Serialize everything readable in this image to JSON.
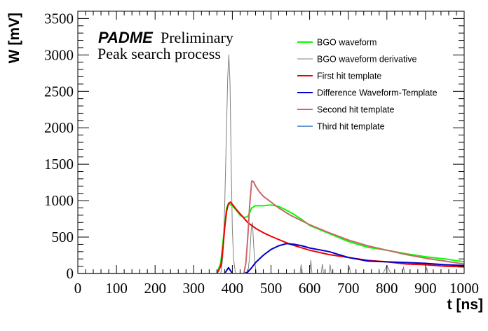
{
  "chart_data": {
    "type": "line",
    "xlabel": "t [ns]",
    "ylabel": "W [mV]",
    "xlim": [
      0,
      1000
    ],
    "ylim": [
      0,
      3600
    ],
    "x_ticks": [
      0,
      100,
      200,
      300,
      400,
      500,
      600,
      700,
      800,
      900,
      1000
    ],
    "y_ticks": [
      0,
      500,
      1000,
      1500,
      2000,
      2500,
      3000,
      3500
    ],
    "grid": false,
    "legend_position": "top-right",
    "annotations": {
      "brand": "PADME",
      "status": "Preliminary",
      "subtitle": "Peak search process"
    },
    "series": [
      {
        "name": "BGO waveform",
        "color": "#00ff00",
        "x": [
          0,
          360,
          370,
          380,
          385,
          390,
          400,
          410,
          420,
          430,
          440,
          450,
          460,
          480,
          500,
          520,
          540,
          560,
          580,
          600,
          650,
          700,
          750,
          800,
          850,
          900,
          950,
          1000
        ],
        "y": [
          0,
          0,
          150,
          650,
          900,
          960,
          930,
          870,
          800,
          770,
          780,
          900,
          930,
          930,
          940,
          920,
          870,
          810,
          740,
          660,
          550,
          440,
          360,
          320,
          270,
          230,
          200,
          160
        ]
      },
      {
        "name": "BGO waveform derivative",
        "color": "#808080",
        "x": [
          0,
          370,
          375,
          380,
          385,
          388,
          391,
          394,
          397,
          400,
          403,
          408,
          420,
          440,
          445,
          449,
          452,
          455,
          458,
          462,
          470,
          500,
          540,
          575,
          578,
          581,
          600,
          603,
          606,
          630,
          633,
          636,
          650,
          653,
          656,
          700,
          703,
          706,
          790,
          800,
          810,
          840,
          843,
          846,
          900,
          903,
          906,
          1000
        ],
        "y": [
          0,
          0,
          200,
          900,
          2000,
          2700,
          3000,
          2600,
          1500,
          600,
          200,
          0,
          0,
          0,
          250,
          620,
          700,
          400,
          150,
          0,
          0,
          0,
          0,
          0,
          120,
          0,
          0,
          180,
          0,
          0,
          130,
          0,
          0,
          120,
          0,
          0,
          90,
          0,
          0,
          110,
          0,
          0,
          90,
          0,
          0,
          80,
          0,
          0
        ]
      },
      {
        "name": "First hit template",
        "color": "#ee0000",
        "x": [
          0,
          360,
          370,
          375,
          380,
          385,
          390,
          395,
          400,
          410,
          420,
          440,
          460,
          480,
          500,
          550,
          600,
          650,
          700,
          750,
          800,
          850,
          900,
          950,
          1000
        ],
        "y": [
          0,
          0,
          100,
          300,
          620,
          850,
          960,
          980,
          950,
          880,
          820,
          700,
          620,
          560,
          510,
          400,
          320,
          260,
          220,
          180,
          160,
          130,
          120,
          100,
          90
        ]
      },
      {
        "name": "Difference Waveform-Template",
        "color": "#0000cc",
        "x": [
          0,
          380,
          390,
          395,
          400,
          420,
          430,
          440,
          450,
          460,
          480,
          500,
          520,
          540,
          560,
          580,
          600,
          650,
          700,
          750,
          800,
          850,
          900,
          950,
          1000
        ],
        "y": [
          0,
          0,
          80,
          40,
          0,
          0,
          0,
          20,
          80,
          150,
          250,
          330,
          380,
          410,
          400,
          380,
          350,
          300,
          220,
          170,
          160,
          150,
          140,
          120,
          110
        ]
      },
      {
        "name": "Second hit template",
        "color": "#cc6666",
        "x": [
          0,
          430,
          435,
          440,
          445,
          450,
          455,
          460,
          470,
          480,
          500,
          520,
          550,
          600,
          650,
          700,
          750,
          800,
          850,
          900,
          950,
          1000
        ],
        "y": [
          0,
          0,
          150,
          500,
          950,
          1270,
          1260,
          1200,
          1120,
          1060,
          980,
          900,
          800,
          670,
          560,
          460,
          380,
          320,
          260,
          210,
          170,
          130
        ]
      },
      {
        "name": "Third hit template",
        "color": "#6699cc",
        "x": [
          0,
          1000
        ],
        "y": [
          0,
          0
        ]
      }
    ]
  }
}
